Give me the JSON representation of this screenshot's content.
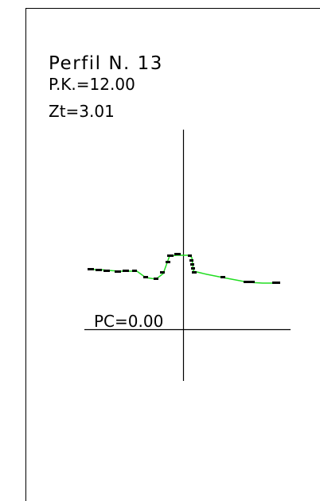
{
  "profile": {
    "title": "Perfil N. 13",
    "pk": "P.K.=12.00",
    "zt": "Zt=3.01",
    "pc": "PC=0.00"
  },
  "colors": {
    "line": "#000000",
    "terrain": "#22dd22",
    "points": "#000000",
    "background": "#ffffff"
  }
}
